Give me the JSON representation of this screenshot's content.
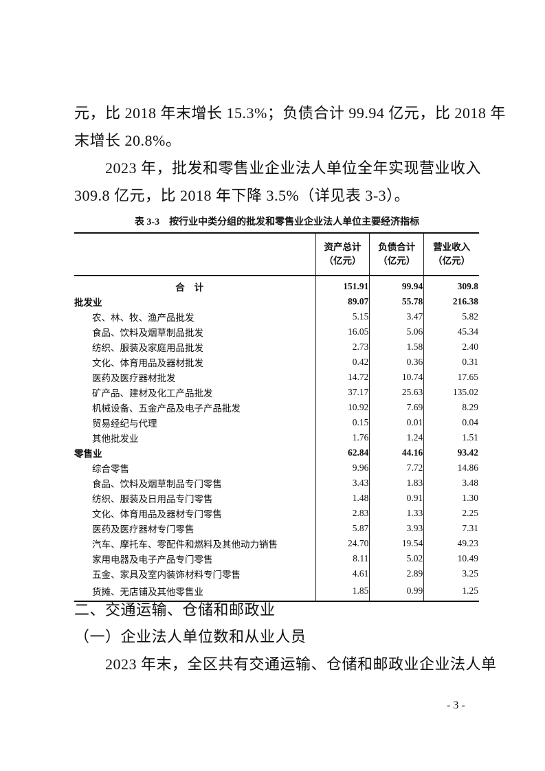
{
  "paragraphs_top": [
    "元，比 2018 年末增长 15.3%；负债合计 99.94 亿元，比 2018 年",
    "末增长 20.8%。",
    "　　2023 年，批发和零售业企业法人单位全年实现营业收入",
    "309.8 亿元，比 2018 年下降 3.5%（详见表 3-3）。"
  ],
  "table": {
    "caption": "表 3-3　按行业中类分组的批发和零售业企业法人单位主要经济指标",
    "headers": [
      "",
      "资产总计（亿元）",
      "负债合计（亿元）",
      "营业收入（亿元）"
    ],
    "header_lines": [
      [
        "资产总计",
        "（亿元）"
      ],
      [
        "负债合计",
        "（亿元）"
      ],
      [
        "营业收入",
        "（亿元）"
      ]
    ],
    "rows": [
      {
        "name": "合计",
        "type": "total",
        "values": [
          "151.91",
          "99.94",
          "309.8"
        ]
      },
      {
        "name": "批发业",
        "type": "group",
        "values": [
          "89.07",
          "55.78",
          "216.38"
        ]
      },
      {
        "name": "农、林、牧、渔产品批发",
        "type": "item",
        "values": [
          "5.15",
          "3.47",
          "5.82"
        ]
      },
      {
        "name": "食品、饮料及烟草制品批发",
        "type": "item",
        "values": [
          "16.05",
          "5.06",
          "45.34"
        ]
      },
      {
        "name": "纺织、服装及家庭用品批发",
        "type": "item",
        "values": [
          "2.73",
          "1.58",
          "2.40"
        ]
      },
      {
        "name": "文化、体育用品及器材批发",
        "type": "item",
        "values": [
          "0.42",
          "0.36",
          "0.31"
        ]
      },
      {
        "name": "医药及医疗器材批发",
        "type": "item",
        "values": [
          "14.72",
          "10.74",
          "17.65"
        ]
      },
      {
        "name": "矿产品、建材及化工产品批发",
        "type": "item",
        "values": [
          "37.17",
          "25.63",
          "135.02"
        ]
      },
      {
        "name": "机械设备、五金产品及电子产品批发",
        "type": "item",
        "values": [
          "10.92",
          "7.69",
          "8.29"
        ]
      },
      {
        "name": "贸易经纪与代理",
        "type": "item",
        "values": [
          "0.15",
          "0.01",
          "0.04"
        ]
      },
      {
        "name": "其他批发业",
        "type": "item",
        "values": [
          "1.76",
          "1.24",
          "1.51"
        ]
      },
      {
        "name": "零售业",
        "type": "group",
        "values": [
          "62.84",
          "44.16",
          "93.42"
        ]
      },
      {
        "name": "综合零售",
        "type": "item",
        "values": [
          "9.96",
          "7.72",
          "14.86"
        ]
      },
      {
        "name": "食品、饮料及烟草制品专门零售",
        "type": "item",
        "values": [
          "3.43",
          "1.83",
          "3.48"
        ]
      },
      {
        "name": "纺织、服装及日用品专门零售",
        "type": "item",
        "values": [
          "1.48",
          "0.91",
          "1.30"
        ]
      },
      {
        "name": "文化、体育用品及器材专门零售",
        "type": "item",
        "values": [
          "2.83",
          "1.33",
          "2.25"
        ]
      },
      {
        "name": "医药及医疗器材专门零售",
        "type": "item",
        "values": [
          "5.87",
          "3.93",
          "7.31"
        ]
      },
      {
        "name": "汽车、摩托车、零配件和燃料及其他动力销售",
        "type": "item",
        "values": [
          "24.70",
          "19.54",
          "49.23"
        ]
      },
      {
        "name": "家用电器及电子产品专门零售",
        "type": "item",
        "values": [
          "8.11",
          "5.02",
          "10.49"
        ]
      },
      {
        "name": "五金、家具及室内装饰材料专门零售",
        "type": "item",
        "values": [
          "4.61",
          "2.89",
          "3.25"
        ]
      },
      {
        "name": "货摊、无店铺及其他零售业",
        "type": "item",
        "values": [
          "1.85",
          "0.99",
          "1.25"
        ]
      }
    ]
  },
  "section_heading": "二、交通运输、仓储和邮政业",
  "subsection_heading": "（一）企业法人单位数和从业人员",
  "paragraph_bottom": "　　2023 年末，全区共有交通运输、仓储和邮政业企业法人单",
  "page_number": "- 3 -"
}
